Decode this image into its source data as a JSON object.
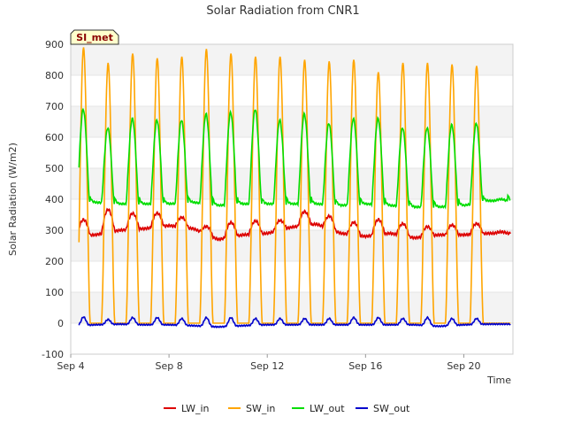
{
  "chart_data": {
    "type": "line",
    "title": "Solar Radiation from CNR1",
    "xlabel": "Time",
    "ylabel": "Solar Radiation (W/m2)",
    "site_badge": "SI_met",
    "ylim": [
      -100,
      900
    ],
    "y_ticks": [
      "-100",
      "0",
      "100",
      "200",
      "300",
      "400",
      "500",
      "600",
      "700",
      "800",
      "900"
    ],
    "xlim": [
      "2023-09-04",
      "2023-09-22"
    ],
    "x_ticks": [
      {
        "date": "2023-09-04",
        "label": "Sep 4"
      },
      {
        "date": "2023-09-08",
        "label": "Sep 8"
      },
      {
        "date": "2023-09-12",
        "label": "Sep 12"
      },
      {
        "date": "2023-09-16",
        "label": "Sep 16"
      },
      {
        "date": "2023-09-20",
        "label": "Sep 20"
      }
    ],
    "grid": "horizontal bands",
    "legend_position": "bottom",
    "days": [
      "2023-09-04",
      "2023-09-05",
      "2023-09-06",
      "2023-09-07",
      "2023-09-08",
      "2023-09-09",
      "2023-09-10",
      "2023-09-11",
      "2023-09-12",
      "2023-09-13",
      "2023-09-14",
      "2023-09-15",
      "2023-09-16",
      "2023-09-17",
      "2023-09-18",
      "2023-09-19",
      "2023-09-20",
      "2023-09-21"
    ],
    "series": [
      {
        "name": "LW_in",
        "color": "#dd0000",
        "night_values": [
          280,
          285,
          300,
          305,
          315,
          305,
          270,
          285,
          290,
          310,
          320,
          290,
          280,
          290,
          275,
          285,
          285,
          290
        ],
        "day_peaks": [
          340,
          375,
          360,
          360,
          345,
          315,
          330,
          335,
          335,
          365,
          350,
          330,
          340,
          325,
          315,
          320,
          325,
          295
        ]
      },
      {
        "name": "SW_in",
        "color": "#ffa500",
        "night_values": [
          0,
          0,
          0,
          0,
          0,
          0,
          0,
          0,
          0,
          0,
          0,
          0,
          0,
          0,
          0,
          0,
          0,
          0
        ],
        "day_peaks": [
          890,
          840,
          870,
          855,
          860,
          885,
          870,
          860,
          860,
          850,
          845,
          850,
          810,
          840,
          840,
          835,
          830,
          0
        ]
      },
      {
        "name": "LW_out",
        "color": "#00dd00",
        "night_values": [
          385,
          390,
          385,
          385,
          385,
          390,
          380,
          385,
          385,
          385,
          385,
          380,
          385,
          380,
          375,
          375,
          380,
          395
        ],
        "day_peaks": [
          690,
          630,
          660,
          655,
          655,
          675,
          680,
          690,
          655,
          675,
          645,
          660,
          660,
          630,
          630,
          640,
          645,
          400
        ]
      },
      {
        "name": "SW_out",
        "color": "#0000cc",
        "night_values": [
          -10,
          -5,
          -3,
          -5,
          -5,
          -8,
          -12,
          -8,
          -5,
          -5,
          -5,
          -5,
          -5,
          -5,
          -5,
          -10,
          -5,
          -3
        ],
        "day_peaks": [
          20,
          12,
          18,
          18,
          15,
          18,
          18,
          15,
          15,
          15,
          15,
          18,
          18,
          15,
          18,
          15,
          15,
          0
        ]
      }
    ]
  }
}
